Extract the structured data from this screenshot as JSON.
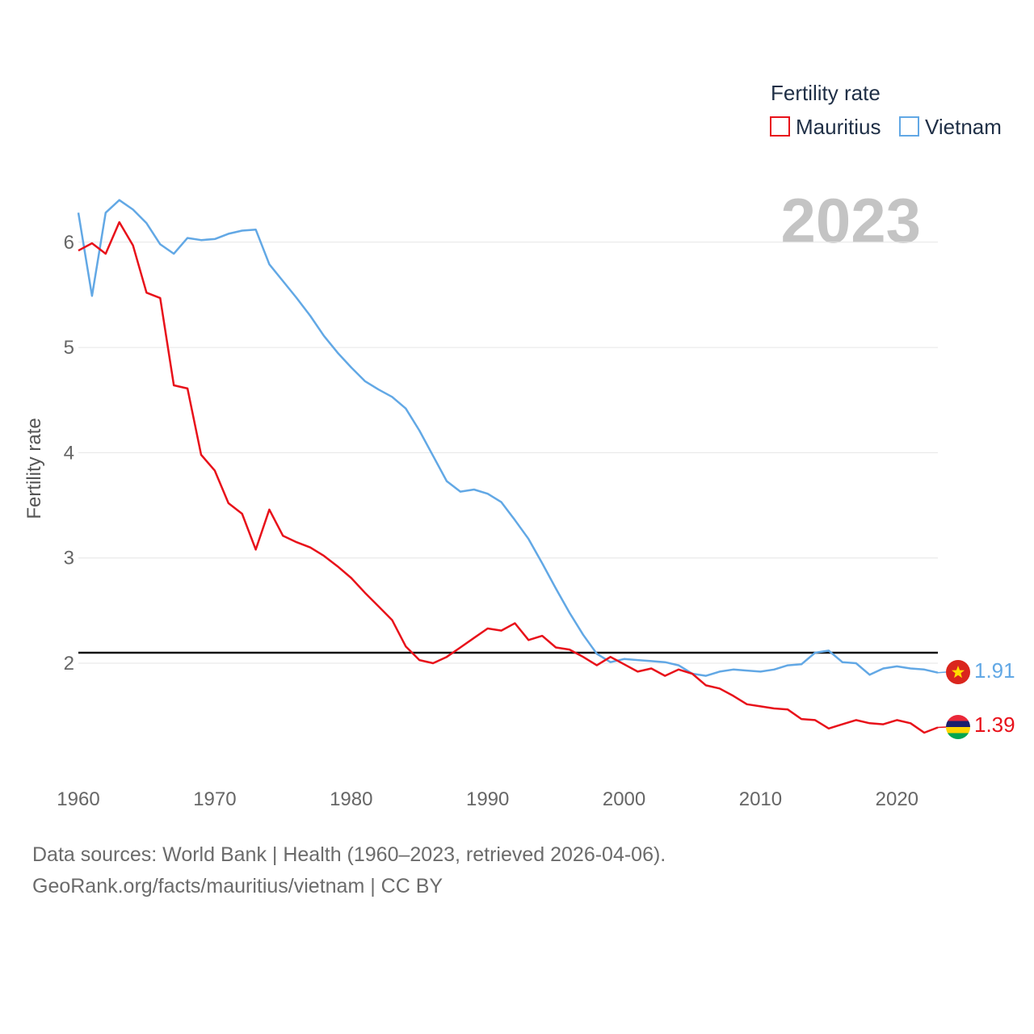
{
  "legend": {
    "title": "Fertility rate",
    "items": [
      {
        "name": "Mauritius",
        "color": "#e8111a"
      },
      {
        "name": "Vietnam",
        "color": "#62a8e5"
      }
    ]
  },
  "year_label": "2023",
  "source_line1": "Data sources: World Bank | Health (1960–2023, retrieved 2026-04-06).",
  "source_line2": "GeoRank.org/facts/mauritius/vietnam | CC BY",
  "chart_data": {
    "type": "line",
    "title": "Fertility rate",
    "xlabel": "",
    "ylabel": "Fertility rate",
    "xlim": [
      1960,
      2023
    ],
    "ylim": [
      1.0,
      6.8
    ],
    "xticks": [
      1960,
      1970,
      1980,
      1990,
      2000,
      2010,
      2020
    ],
    "yticks": [
      2,
      3,
      4,
      5,
      6
    ],
    "reference_line": 2.1,
    "x": [
      1960,
      1961,
      1962,
      1963,
      1964,
      1965,
      1966,
      1967,
      1968,
      1969,
      1970,
      1971,
      1972,
      1973,
      1974,
      1975,
      1976,
      1977,
      1978,
      1979,
      1980,
      1981,
      1982,
      1983,
      1984,
      1985,
      1986,
      1987,
      1988,
      1989,
      1990,
      1991,
      1992,
      1993,
      1994,
      1995,
      1996,
      1997,
      1998,
      1999,
      2000,
      2001,
      2002,
      2003,
      2004,
      2005,
      2006,
      2007,
      2008,
      2009,
      2010,
      2011,
      2012,
      2013,
      2014,
      2015,
      2016,
      2017,
      2018,
      2019,
      2020,
      2021,
      2022,
      2023
    ],
    "series": [
      {
        "name": "Mauritius",
        "color": "#e8111a",
        "end_label": "1.39",
        "values": [
          5.92,
          5.99,
          5.89,
          6.19,
          5.97,
          5.52,
          5.47,
          4.64,
          4.61,
          3.98,
          3.83,
          3.52,
          3.42,
          3.08,
          3.46,
          3.21,
          3.15,
          3.1,
          3.02,
          2.92,
          2.81,
          2.67,
          2.54,
          2.41,
          2.16,
          2.03,
          2.0,
          2.06,
          2.15,
          2.24,
          2.33,
          2.31,
          2.38,
          2.22,
          2.26,
          2.15,
          2.13,
          2.06,
          1.98,
          2.06,
          1.99,
          1.92,
          1.95,
          1.88,
          1.94,
          1.9,
          1.79,
          1.76,
          1.69,
          1.61,
          1.59,
          1.57,
          1.56,
          1.47,
          1.46,
          1.38,
          1.42,
          1.46,
          1.43,
          1.42,
          1.46,
          1.43,
          1.34,
          1.39
        ]
      },
      {
        "name": "Vietnam",
        "color": "#62a8e5",
        "end_label": "1.91",
        "values": [
          6.28,
          5.49,
          6.28,
          6.4,
          6.31,
          6.18,
          5.98,
          5.89,
          6.04,
          6.02,
          6.03,
          6.08,
          6.11,
          6.12,
          5.79,
          5.63,
          5.47,
          5.3,
          5.11,
          4.95,
          4.81,
          4.68,
          4.6,
          4.53,
          4.42,
          4.21,
          3.97,
          3.73,
          3.63,
          3.65,
          3.61,
          3.53,
          3.36,
          3.18,
          2.95,
          2.71,
          2.48,
          2.27,
          2.09,
          2.01,
          2.04,
          2.03,
          2.02,
          2.01,
          1.98,
          1.9,
          1.88,
          1.92,
          1.94,
          1.93,
          1.92,
          1.94,
          1.98,
          1.99,
          2.1,
          2.12,
          2.01,
          2.0,
          1.89,
          1.95,
          1.97,
          1.95,
          1.94,
          1.91
        ]
      }
    ]
  }
}
